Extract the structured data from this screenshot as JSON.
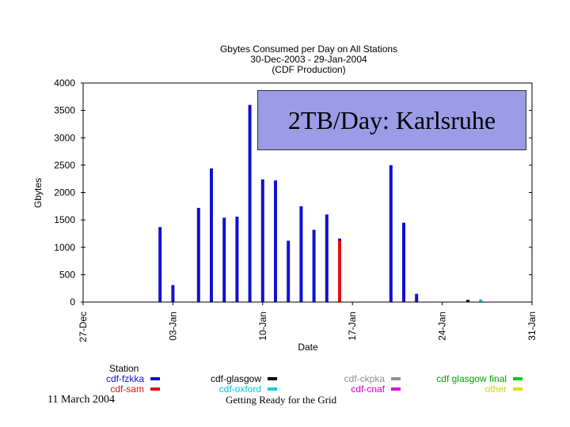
{
  "chart_data": {
    "type": "bar",
    "title": "Gbytes Consumed per Day on All Stations",
    "subtitle": "30-Dec-2003 - 29-Jan-2004",
    "subtitle2": "(CDF Production)",
    "xlabel": "Date",
    "ylabel": "Gbytes",
    "ylim": [
      0,
      4000
    ],
    "yticks": [
      0,
      500,
      1000,
      1500,
      2000,
      2500,
      3000,
      3500,
      4000
    ],
    "xlim_days": [
      0,
      35
    ],
    "xticks": [
      {
        "label": "27-Dec",
        "day": 0
      },
      {
        "label": "03-Jan",
        "day": 7
      },
      {
        "label": "10-Jan",
        "day": 14
      },
      {
        "label": "17-Jan",
        "day": 21
      },
      {
        "label": "24-Jan",
        "day": 28
      },
      {
        "label": "31-Jan",
        "day": 35
      }
    ],
    "series": [
      {
        "name": "cdf-fzkka",
        "color": "#1010d0",
        "points": [
          [
            6,
            1370
          ],
          [
            7,
            310
          ],
          [
            9,
            1720
          ],
          [
            10,
            2440
          ],
          [
            11,
            1540
          ],
          [
            12,
            1560
          ],
          [
            13,
            3600
          ],
          [
            14,
            2240
          ],
          [
            15,
            2220
          ],
          [
            16,
            1120
          ],
          [
            17,
            1750
          ],
          [
            18,
            1320
          ],
          [
            19,
            1600
          ],
          [
            20,
            1160
          ],
          [
            24,
            2500
          ],
          [
            25,
            1450
          ],
          [
            26,
            150
          ]
        ]
      },
      {
        "name": "cdf-sam",
        "color": "#e01010",
        "points": [
          [
            20,
            1120
          ]
        ]
      },
      {
        "name": "cdf-glasgow",
        "color": "#000000",
        "points": [
          [
            30,
            40
          ]
        ]
      },
      {
        "name": "cdf-oxford",
        "color": "#00d0d0",
        "points": [
          [
            31,
            50
          ]
        ]
      },
      {
        "name": "cdf-ckpka",
        "color": "#909090",
        "points": []
      },
      {
        "name": "cdf-cnaf",
        "color": "#e000e0",
        "points": []
      },
      {
        "name": "cdf-glasgow-final",
        "label": "cdf glasgow final",
        "color": "#00d000",
        "points": []
      },
      {
        "name": "other",
        "color": "#e0e000",
        "points": []
      }
    ]
  },
  "legend": {
    "title": "Station",
    "items": [
      {
        "label": "cdf-fzkka",
        "color": "#1010d0",
        "text_color": "#1010d0"
      },
      {
        "label": "cdf-sam",
        "color": "#e01010",
        "text_color": "#e01010"
      },
      {
        "label": "cdf-glasgow",
        "color": "#000000",
        "text_color": "#000000"
      },
      {
        "label": "cdf-oxford",
        "color": "#00d0d0",
        "text_color": "#00c8e0"
      },
      {
        "label": "cdf-ckpka",
        "color": "#909090",
        "text_color": "#909090"
      },
      {
        "label": "cdf-cnaf",
        "color": "#e000e0",
        "text_color": "#d000d0"
      },
      {
        "label": "cdf glasgow final",
        "color": "#00d000",
        "text_color": "#00a000"
      },
      {
        "label": "other",
        "color": "#e0e000",
        "text_color": "#d0d000"
      }
    ]
  },
  "callout": {
    "text": "2TB/Day: Karlsruhe"
  },
  "footer": {
    "date": "11 March 2004",
    "title": "Getting Ready for the Grid"
  }
}
